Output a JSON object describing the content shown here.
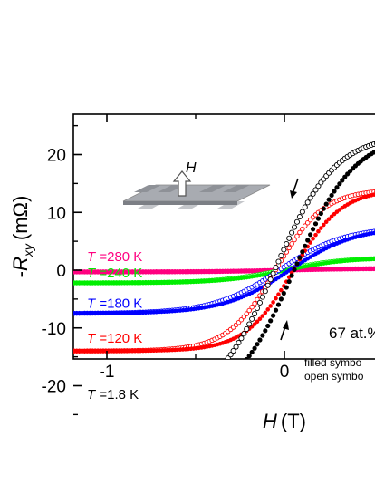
{
  "chart_data": {
    "type": "scatter",
    "xlabel": {
      "symbol": "H",
      "unit": "(T)"
    },
    "ylabel": {
      "sign": "-",
      "symbol": "R",
      "subscript": "xy",
      "unit": "(mΩ)"
    },
    "xlim": [
      -1.2,
      0.5
    ],
    "ylim": [
      -27,
      27
    ],
    "x_ticks": [
      -1,
      0
    ],
    "x_tick_labels": [
      "-1",
      "0"
    ],
    "y_ticks": [
      -20,
      -10,
      0,
      10,
      20
    ],
    "y_tick_labels": [
      "-20",
      "-10",
      "0",
      "10",
      "20"
    ],
    "series": [
      {
        "name": "T =1.8 K",
        "label_temp": "=1.8 K",
        "color": "#000000",
        "sat": 23.5,
        "hw": 0.34,
        "hc": 0.055
      },
      {
        "name": "T =120 K",
        "label_temp": "=120 K",
        "color": "#ff0000",
        "sat": 14.0,
        "hw": 0.27,
        "hc": 0.05
      },
      {
        "name": "T =180 K",
        "label_temp": "=180 K",
        "color": "#0000ff",
        "sat": 7.5,
        "hw": 0.37,
        "hc": 0.03
      },
      {
        "name": "T =240 K",
        "label_temp": "=240 K",
        "color": "#00ee00",
        "sat": 2.2,
        "hw": 0.35,
        "hc": 0.015
      },
      {
        "name": "T =280 K",
        "label_temp": "=280 K",
        "color": "#ff0080",
        "sat": 0.3,
        "hw": 0.4,
        "hc": 0.0
      }
    ],
    "label_prefix": "T",
    "annotations": {
      "field_label": "H",
      "composition": "67 at.%",
      "legend_filled": "filled symbo",
      "legend_open": "open symbo"
    }
  }
}
